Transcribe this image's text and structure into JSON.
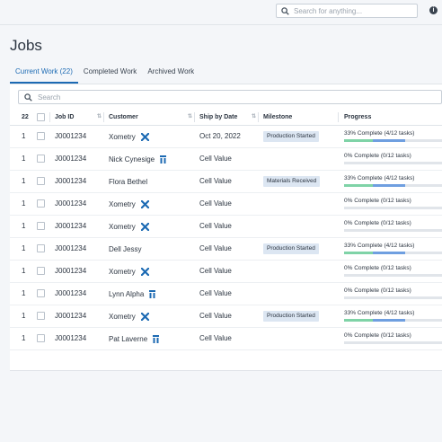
{
  "colors": {
    "accent": "#1c6ab3",
    "complete": "#7fd3a7",
    "in_progress": "#6f9fe0",
    "track": "#e1e5ea",
    "milestone_bg": "#dce6f2"
  },
  "topbar": {
    "search_placeholder": "Search for anything...",
    "search_icon": "search-icon",
    "info_icon": "info-icon"
  },
  "page": {
    "title": "Jobs"
  },
  "tabs": [
    {
      "label": "Current Work (22)",
      "active": true
    },
    {
      "label": "Completed Work",
      "active": false
    },
    {
      "label": "Archived Work",
      "active": false
    }
  ],
  "grid": {
    "search_placeholder": "Search",
    "headers": {
      "count": "22",
      "job_id": "Job ID",
      "customer": "Customer",
      "ship_by": "Ship by Date",
      "milestone": "Milestone",
      "progress": "Progress"
    },
    "rows": [
      {
        "qty": "1",
        "job": "J0001234",
        "customer": "Xometry",
        "icon": "xometry-icon",
        "ship": "Oct 20, 2022",
        "milestone": "Production Started",
        "progress": "33% Complete (4/12 tasks)",
        "complete_frac": 0.29,
        "progress_frac": 0.33
      },
      {
        "qty": "1",
        "job": "J0001234",
        "customer": "Nick Cynesige",
        "icon": "person-icon",
        "ship": "Cell Value",
        "milestone": "",
        "progress": "0% Complete (0/12 tasks)",
        "complete_frac": 0,
        "progress_frac": 0
      },
      {
        "qty": "1",
        "job": "J0001234",
        "customer": "Flora Bethel",
        "icon": "",
        "ship": "Cell Value",
        "milestone": "Materials Received",
        "progress": "33% Complete (4/12 tasks)",
        "complete_frac": 0.29,
        "progress_frac": 0.33
      },
      {
        "qty": "1",
        "job": "J0001234",
        "customer": "Xometry",
        "icon": "xometry-icon",
        "ship": "Cell Value",
        "milestone": "",
        "progress": "0% Complete (0/12 tasks)",
        "complete_frac": 0,
        "progress_frac": 0
      },
      {
        "qty": "1",
        "job": "J0001234",
        "customer": "Xometry",
        "icon": "xometry-icon",
        "ship": "Cell Value",
        "milestone": "",
        "progress": "0% Complete (0/12 tasks)",
        "complete_frac": 0,
        "progress_frac": 0
      },
      {
        "qty": "1",
        "job": "J0001234",
        "customer": "Dell Jessy",
        "icon": "",
        "ship": "Cell Value",
        "milestone": "Production Started",
        "progress": "33% Complete (4/12 tasks)",
        "complete_frac": 0.29,
        "progress_frac": 0.33
      },
      {
        "qty": "1",
        "job": "J0001234",
        "customer": "Xometry",
        "icon": "xometry-icon",
        "ship": "Cell Value",
        "milestone": "",
        "progress": "0% Complete (0/12 tasks)",
        "complete_frac": 0,
        "progress_frac": 0
      },
      {
        "qty": "1",
        "job": "J0001234",
        "customer": "Lynn Alpha",
        "icon": "person-icon",
        "ship": "Cell Value",
        "milestone": "",
        "progress": "0% Complete (0/12 tasks)",
        "complete_frac": 0,
        "progress_frac": 0
      },
      {
        "qty": "1",
        "job": "J0001234",
        "customer": "Xometry",
        "icon": "xometry-icon",
        "ship": "Cell Value",
        "milestone": "Production Started",
        "progress": "33% Complete (4/12 tasks)",
        "complete_frac": 0.29,
        "progress_frac": 0.33
      },
      {
        "qty": "1",
        "job": "J0001234",
        "customer": "Pat Laverne",
        "icon": "person-icon",
        "ship": "Cell Value",
        "milestone": "",
        "progress": "0% Complete (0/12 tasks)",
        "complete_frac": 0,
        "progress_frac": 0
      }
    ]
  }
}
